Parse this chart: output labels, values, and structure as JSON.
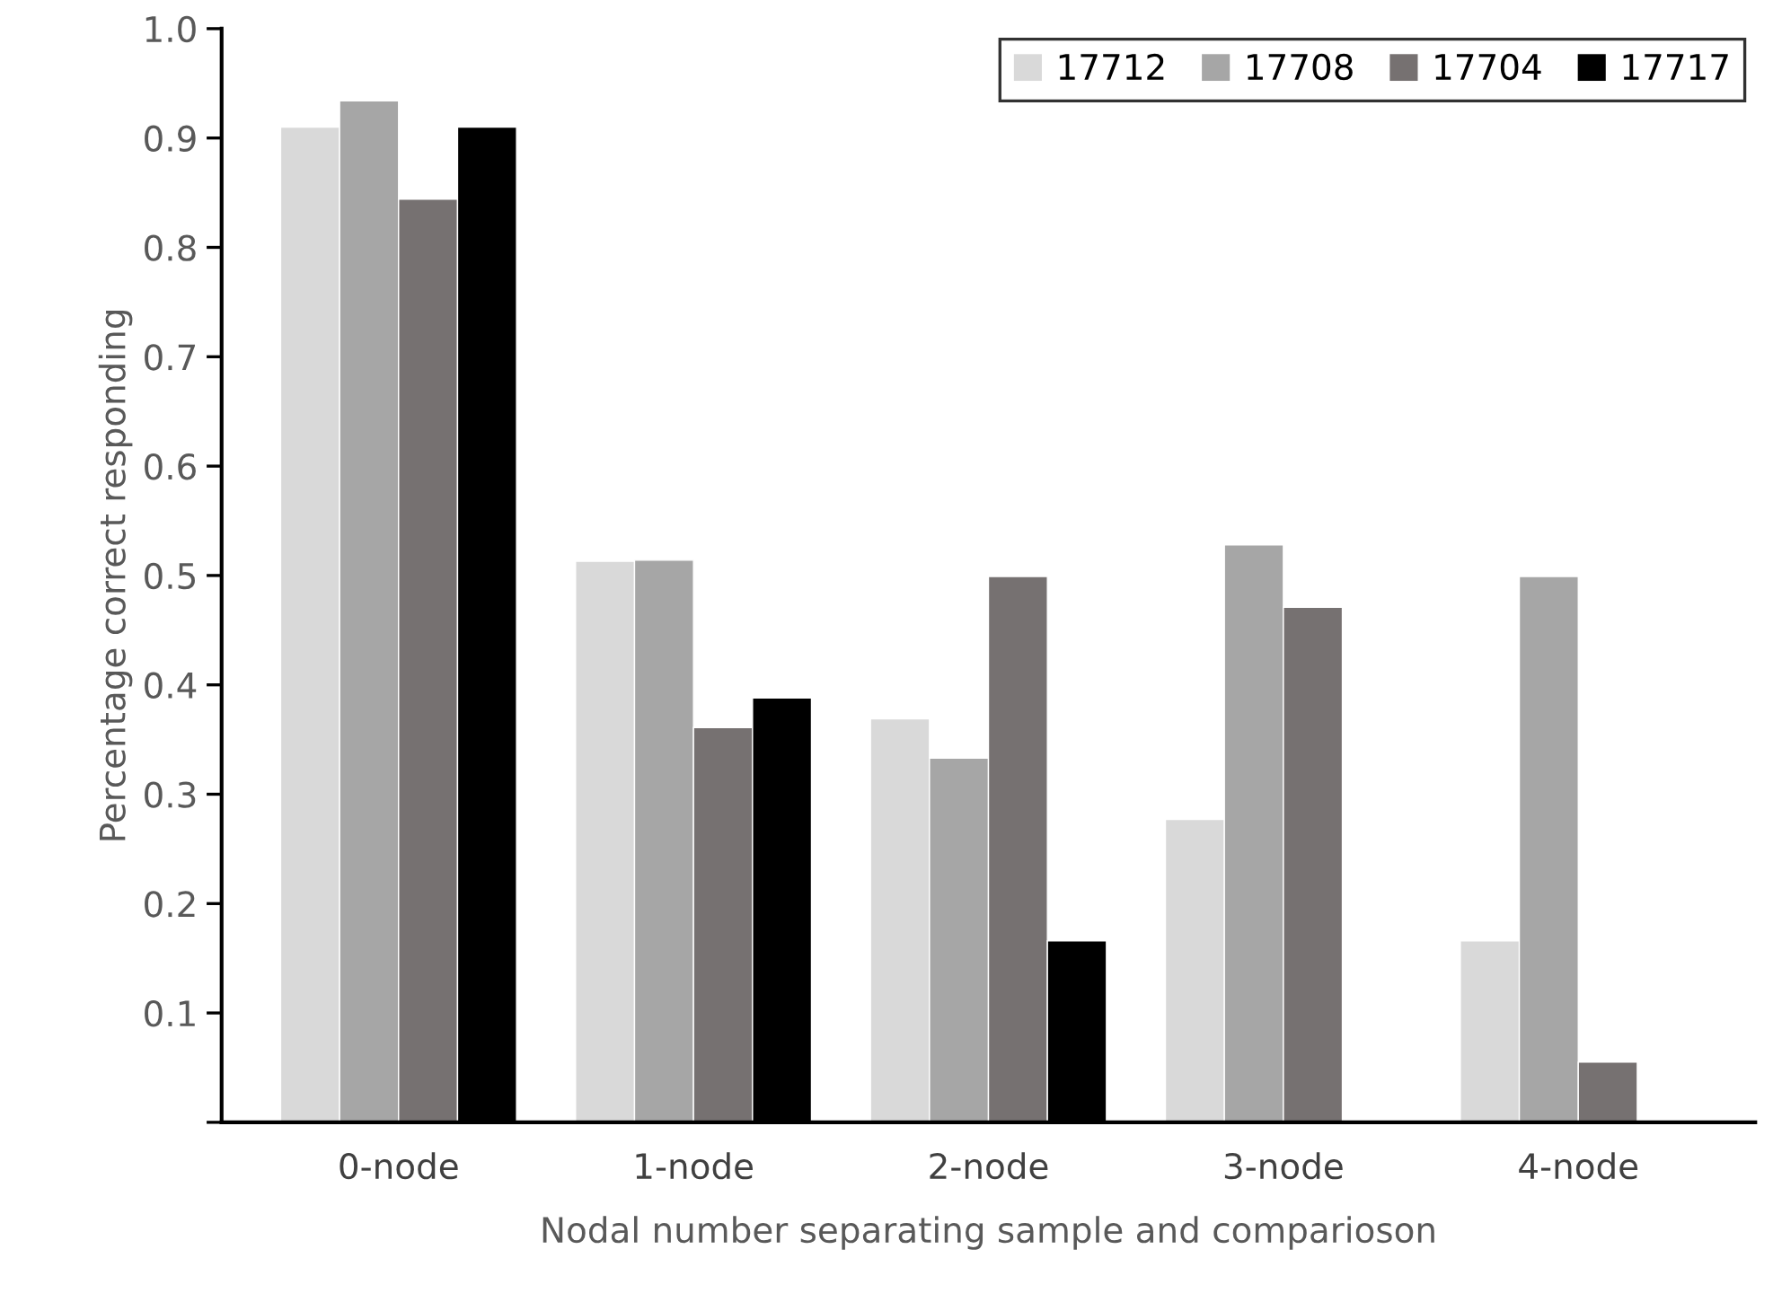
{
  "chart_data": {
    "type": "bar",
    "xlabel": "Nodal number separating sample and comparioson",
    "ylabel": "Percentage correct responding",
    "categories": [
      "0-node",
      "1-node",
      "2-node",
      "3-node",
      "4-node"
    ],
    "series": [
      {
        "name": "17712",
        "color": "#d9d9d9",
        "values": [
          0.91,
          0.513,
          0.369,
          0.277,
          0.166
        ]
      },
      {
        "name": "17708",
        "color": "#a6a6a6",
        "values": [
          0.934,
          0.514,
          0.333,
          0.528,
          0.499
        ]
      },
      {
        "name": "17704",
        "color": "#767171",
        "values": [
          0.844,
          0.361,
          0.499,
          0.471,
          0.055
        ]
      },
      {
        "name": "17717",
        "color": "#000000",
        "values": [
          0.91,
          0.388,
          0.166,
          null,
          null
        ]
      }
    ],
    "ylim": [
      0,
      1.0
    ],
    "yticks": [
      {
        "value": 0,
        "label": null
      },
      0.1,
      0.2,
      0.3,
      0.4,
      0.5,
      0.6,
      0.7,
      0.8,
      0.9,
      {
        "value": 1.0,
        "label": "1.0"
      }
    ],
    "grid": false,
    "legend": "top right"
  }
}
